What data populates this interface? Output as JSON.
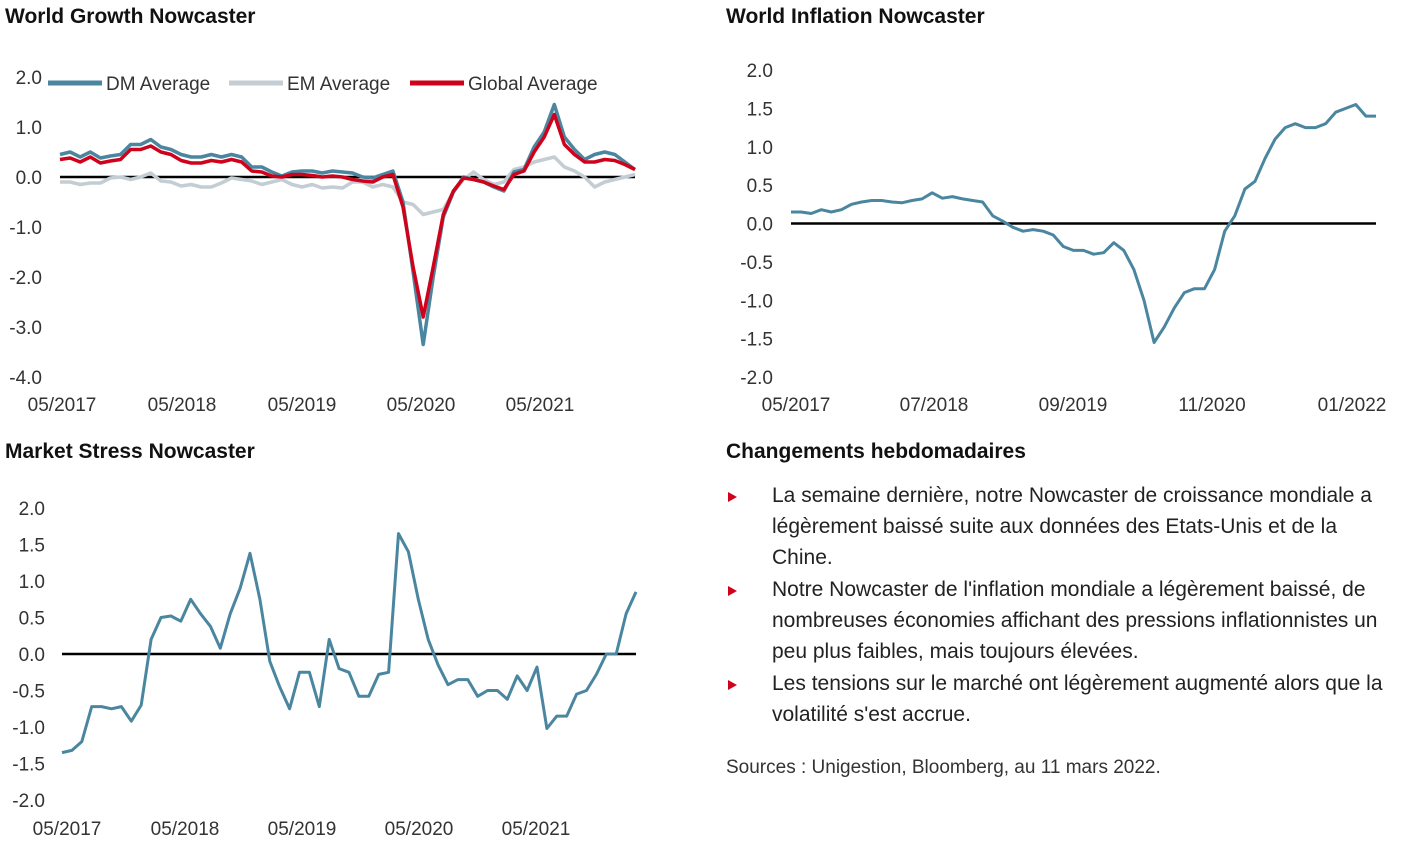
{
  "colors": {
    "dm": "#4a86a0",
    "em": "#c3cdd3",
    "global": "#d0021b",
    "axis": "#000000",
    "stress": "#4a86a0",
    "inflation": "#4a86a0",
    "bullet": "#d0021b"
  },
  "chart_data": [
    {
      "id": "growth",
      "type": "line",
      "title": "World Growth Nowcaster",
      "yticks": [
        "2.0",
        "1.0",
        "0.0",
        "-1.0",
        "-2.0",
        "-3.0",
        "-4.0"
      ],
      "ylim": [
        -4,
        2
      ],
      "xticks": [
        "05/2017",
        "05/2018",
        "05/2019",
        "05/2020",
        "05/2021"
      ],
      "legend": {
        "position": "top",
        "entries": [
          "DM Average",
          "EM Average",
          "Global Average"
        ]
      },
      "series": [
        {
          "name": "DM Average",
          "color": "#4a86a0",
          "values": [
            0.45,
            0.5,
            0.4,
            0.5,
            0.38,
            0.42,
            0.45,
            0.65,
            0.65,
            0.75,
            0.6,
            0.55,
            0.45,
            0.4,
            0.4,
            0.45,
            0.4,
            0.45,
            0.4,
            0.2,
            0.2,
            0.1,
            0.02,
            0.1,
            0.12,
            0.12,
            0.08,
            0.12,
            0.1,
            0.08,
            0.0,
            -0.02,
            0.05,
            0.12,
            -0.5,
            -1.9,
            -3.35,
            -2.0,
            -0.8,
            -0.3,
            0.0,
            -0.05,
            -0.1,
            -0.2,
            -0.28,
            0.1,
            0.15,
            0.6,
            0.9,
            1.45,
            0.8,
            0.55,
            0.35,
            0.45,
            0.5,
            0.45,
            0.3,
            0.15
          ]
        },
        {
          "name": "EM Average",
          "color": "#c3cdd3",
          "values": [
            -0.1,
            -0.1,
            -0.15,
            -0.12,
            -0.12,
            -0.02,
            0.0,
            -0.05,
            0.0,
            0.08,
            -0.08,
            -0.1,
            -0.18,
            -0.15,
            -0.2,
            -0.2,
            -0.12,
            -0.02,
            -0.05,
            -0.08,
            -0.15,
            -0.1,
            -0.05,
            -0.15,
            -0.2,
            -0.15,
            -0.22,
            -0.2,
            -0.22,
            -0.1,
            -0.1,
            -0.2,
            -0.15,
            -0.2,
            -0.5,
            -0.55,
            -0.75,
            -0.7,
            -0.65,
            -0.3,
            -0.05,
            0.1,
            -0.05,
            -0.15,
            -0.1,
            0.15,
            0.2,
            0.3,
            0.35,
            0.4,
            0.2,
            0.12,
            0.0,
            -0.2,
            -0.1,
            -0.05,
            0.0,
            0.05
          ]
        },
        {
          "name": "Global Average",
          "color": "#d0021b",
          "values": [
            0.35,
            0.38,
            0.3,
            0.4,
            0.28,
            0.32,
            0.35,
            0.55,
            0.55,
            0.62,
            0.5,
            0.45,
            0.33,
            0.28,
            0.28,
            0.33,
            0.3,
            0.35,
            0.3,
            0.12,
            0.1,
            0.02,
            0.0,
            0.05,
            0.05,
            0.03,
            0.0,
            0.02,
            0.0,
            -0.05,
            -0.08,
            -0.1,
            0.0,
            0.05,
            -0.6,
            -1.8,
            -2.8,
            -1.8,
            -0.75,
            -0.28,
            -0.02,
            -0.05,
            -0.1,
            -0.18,
            -0.25,
            0.05,
            0.12,
            0.5,
            0.8,
            1.25,
            0.65,
            0.45,
            0.3,
            0.3,
            0.35,
            0.33,
            0.25,
            0.15
          ]
        }
      ]
    },
    {
      "id": "inflation",
      "type": "line",
      "title": "World Inflation Nowcaster",
      "yticks": [
        "2.0",
        "1.5",
        "1.0",
        "0.5",
        "0.0",
        "-0.5",
        "-1.0",
        "-1.5",
        "-2.0"
      ],
      "ylim": [
        -2,
        2
      ],
      "xticks": [
        "05/2017",
        "07/2018",
        "09/2019",
        "11/2020",
        "01/2022"
      ],
      "series": [
        {
          "name": "",
          "color": "#4a86a0",
          "values": [
            0.15,
            0.15,
            0.13,
            0.18,
            0.15,
            0.18,
            0.25,
            0.28,
            0.3,
            0.3,
            0.28,
            0.27,
            0.3,
            0.32,
            0.4,
            0.33,
            0.35,
            0.32,
            0.3,
            0.28,
            0.1,
            0.03,
            -0.05,
            -0.1,
            -0.08,
            -0.1,
            -0.15,
            -0.3,
            -0.35,
            -0.35,
            -0.4,
            -0.38,
            -0.25,
            -0.35,
            -0.6,
            -1.0,
            -1.55,
            -1.35,
            -1.1,
            -0.9,
            -0.85,
            -0.85,
            -0.6,
            -0.1,
            0.1,
            0.45,
            0.55,
            0.85,
            1.1,
            1.25,
            1.3,
            1.25,
            1.25,
            1.3,
            1.45,
            1.5,
            1.55,
            1.4,
            1.4
          ]
        }
      ]
    },
    {
      "id": "stress",
      "type": "line",
      "title": "Market Stress Nowcaster",
      "yticks": [
        "2.0",
        "1.5",
        "1.0",
        "0.5",
        "0.0",
        "-0.5",
        "-1.0",
        "-1.5",
        "-2.0"
      ],
      "ylim": [
        -2,
        2
      ],
      "xticks": [
        "05/2017",
        "05/2018",
        "05/2019",
        "05/2020",
        "05/2021"
      ],
      "series": [
        {
          "name": "",
          "color": "#4a86a0",
          "values": [
            -1.35,
            -1.32,
            -1.2,
            -0.72,
            -0.72,
            -0.75,
            -0.72,
            -0.92,
            -0.7,
            0.2,
            0.5,
            0.52,
            0.45,
            0.75,
            0.55,
            0.38,
            0.08,
            0.55,
            0.9,
            1.38,
            0.75,
            -0.1,
            -0.45,
            -0.75,
            -0.25,
            -0.25,
            -0.72,
            0.2,
            -0.2,
            -0.25,
            -0.58,
            -0.58,
            -0.28,
            -0.25,
            1.65,
            1.4,
            0.75,
            0.2,
            -0.15,
            -0.42,
            -0.35,
            -0.35,
            -0.58,
            -0.5,
            -0.5,
            -0.62,
            -0.3,
            -0.5,
            -0.18,
            -1.02,
            -0.85,
            -0.85,
            -0.55,
            -0.5,
            -0.28,
            0.0,
            0.0,
            0.55,
            0.85
          ]
        }
      ]
    }
  ],
  "weekly": {
    "title": "Changements hebdomadaires",
    "items": [
      "La semaine dernière, notre Nowcaster de croissance mondiale a légèrement baissé suite aux données des Etats-Unis et de la Chine.",
      "Notre Nowcaster de l'inflation mondiale a légèrement baissé, de nombreuses économies affichant des pressions inflationnistes un peu plus faibles, mais toujours élevées.",
      "Les tensions sur le marché ont légèrement augmenté alors que la volatilité s'est accrue."
    ],
    "sources": "Sources : Unigestion, Bloomberg, au 11 mars 2022."
  }
}
